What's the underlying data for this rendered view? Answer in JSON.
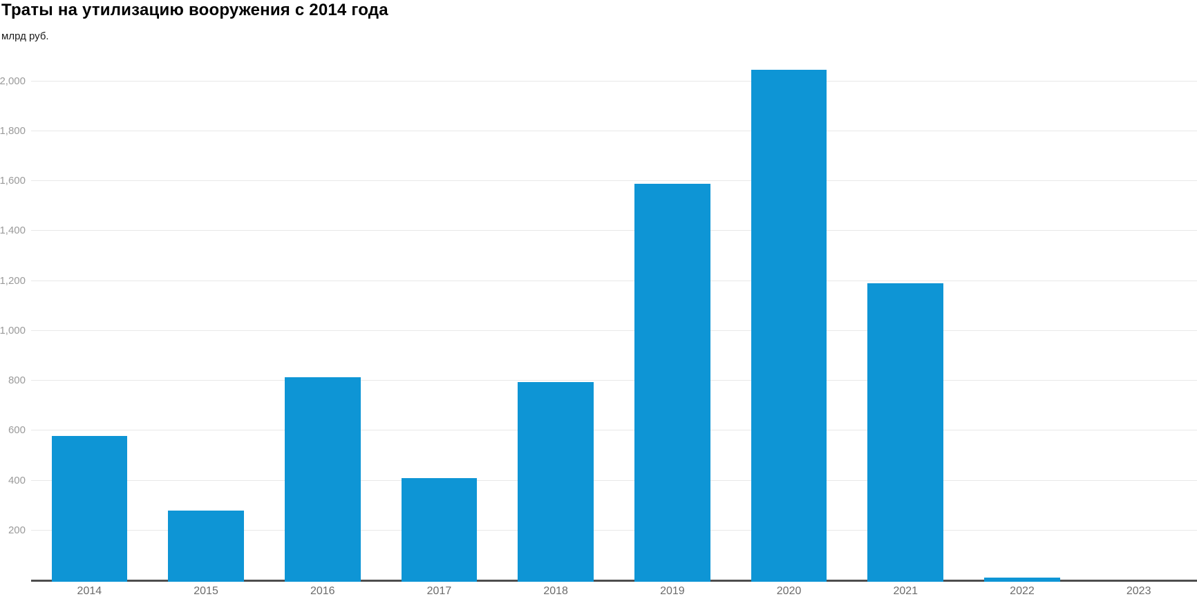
{
  "header": {
    "title": "Траты на утилизацию вооружения с 2014 года",
    "subtitle": "млрд руб."
  },
  "colors": {
    "bar": "#0e95d5",
    "gridline": "#e8e8e8",
    "axis_line": "#4d4d4d",
    "y_tick_label": "#9a9a9a",
    "x_tick_label": "#6b6b6b",
    "title": "#000000",
    "background": "#ffffff"
  },
  "chart_data": {
    "type": "bar",
    "title": "Траты на утилизацию вооружения с 2014 года",
    "subtitle": "млрд руб.",
    "unit": "млрд руб.",
    "categories": [
      "2014",
      "2015",
      "2016",
      "2017",
      "2018",
      "2019",
      "2020",
      "2021",
      "2022",
      "2023"
    ],
    "values": [
      580,
      280,
      815,
      410,
      795,
      1590,
      2045,
      1190,
      10,
      0
    ],
    "series": [
      {
        "name": "Траты на утилизацию вооружения, млрд руб.",
        "values": [
          580,
          280,
          815,
          410,
          795,
          1590,
          2045,
          1190,
          10,
          0
        ]
      }
    ],
    "xlabel": "",
    "ylabel": "млрд руб.",
    "ylim": [
      0,
      2110
    ],
    "yticks": [
      200,
      400,
      600,
      800,
      1000,
      1200,
      1400,
      1600,
      1800,
      2000
    ],
    "ytick_labels": [
      "200",
      "400",
      "600",
      "800",
      "1,000",
      "1,200",
      "1,400",
      "1,600",
      "1,800",
      "2,000"
    ],
    "grid": true,
    "legend": "none",
    "bar_color": "#0e95d5"
  }
}
